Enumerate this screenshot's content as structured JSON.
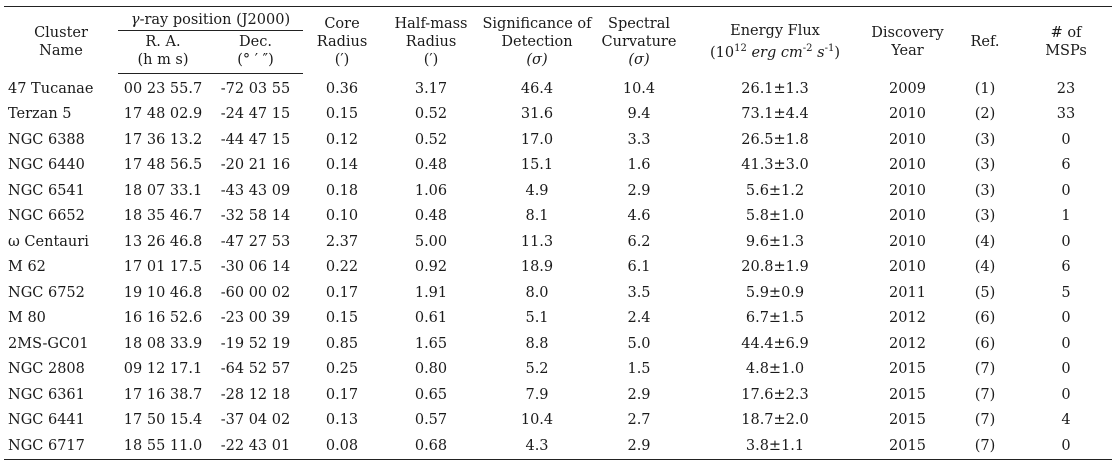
{
  "table": {
    "headers": {
      "cluster_name_1": "Cluster",
      "cluster_name_2": "Name",
      "gamma_group": "γ-ray position (J2000)",
      "ra_1": "R. A.",
      "ra_2": "(h m s)",
      "dec_1": "Dec.",
      "dec_2": "(° ′ ″)",
      "core_1": "Core",
      "core_2": "Radius",
      "core_3": "(′)",
      "half_1": "Half-mass",
      "half_2": "Radius",
      "half_3": "(′)",
      "sig_1": "Significance of",
      "sig_2": "Detection",
      "sig_3": "(σ)",
      "spec_1": "Spectral",
      "spec_2": "Curvature",
      "spec_3": "(σ)",
      "flux_1": "Energy Flux",
      "flux_2a": "(10",
      "flux_exp1": "12",
      "flux_2b": " erg cm",
      "flux_exp2": "-2",
      "flux_2c": " s",
      "flux_exp3": "-1",
      "flux_2d": ")",
      "year_1": "Discovery",
      "year_2": "Year",
      "ref": "Ref.",
      "msp_1": "# of",
      "msp_2": "MSPs"
    },
    "rows": [
      {
        "name": "47 Tucanae",
        "ra": "00 23 55.7",
        "dec": "-72 03 55",
        "core": "0.36",
        "half": "3.17",
        "sig": "46.4",
        "curv": "10.4",
        "flux": "26.1±1.3",
        "year": "2009",
        "ref": "(1)",
        "msps": "23"
      },
      {
        "name": "Terzan 5",
        "ra": "17 48 02.9",
        "dec": "-24 47 15",
        "core": "0.15",
        "half": "0.52",
        "sig": "31.6",
        "curv": "9.4",
        "flux": "73.1±4.4",
        "year": "2010",
        "ref": "(2)",
        "msps": "33"
      },
      {
        "name": "NGC 6388",
        "ra": "17 36 13.2",
        "dec": "-44 47 15",
        "core": "0.12",
        "half": "0.52",
        "sig": "17.0",
        "curv": "3.3",
        "flux": "26.5±1.8",
        "year": "2010",
        "ref": "(3)",
        "msps": "0"
      },
      {
        "name": "NGC 6440",
        "ra": "17 48 56.5",
        "dec": "-20 21 16",
        "core": "0.14",
        "half": "0.48",
        "sig": "15.1",
        "curv": "1.6",
        "flux": "41.3±3.0",
        "year": "2010",
        "ref": "(3)",
        "msps": "6"
      },
      {
        "name": "NGC 6541",
        "ra": "18 07 33.1",
        "dec": "-43 43 09",
        "core": "0.18",
        "half": "1.06",
        "sig": "4.9",
        "curv": "2.9",
        "flux": "5.6±1.2",
        "year": "2010",
        "ref": "(3)",
        "msps": "0"
      },
      {
        "name": "NGC 6652",
        "ra": "18 35 46.7",
        "dec": "-32 58 14",
        "core": "0.10",
        "half": "0.48",
        "sig": "8.1",
        "curv": "4.6",
        "flux": "5.8±1.0",
        "year": "2010",
        "ref": "(3)",
        "msps": "1"
      },
      {
        "name": "ω Centauri",
        "ra": "13 26 46.8",
        "dec": "-47 27 53",
        "core": "2.37",
        "half": "5.00",
        "sig": "11.3",
        "curv": "6.2",
        "flux": "9.6±1.3",
        "year": "2010",
        "ref": "(4)",
        "msps": "0"
      },
      {
        "name": "M 62",
        "ra": "17 01 17.5",
        "dec": "-30 06 14",
        "core": "0.22",
        "half": "0.92",
        "sig": "18.9",
        "curv": "6.1",
        "flux": "20.8±1.9",
        "year": "2010",
        "ref": "(4)",
        "msps": "6"
      },
      {
        "name": "NGC 6752",
        "ra": "19 10 46.8",
        "dec": "-60 00 02",
        "core": "0.17",
        "half": "1.91",
        "sig": "8.0",
        "curv": "3.5",
        "flux": "5.9±0.9",
        "year": "2011",
        "ref": "(5)",
        "msps": "5"
      },
      {
        "name": "M 80",
        "ra": "16 16 52.6",
        "dec": "-23 00 39",
        "core": "0.15",
        "half": "0.61",
        "sig": "5.1",
        "curv": "2.4",
        "flux": "6.7±1.5",
        "year": "2012",
        "ref": "(6)",
        "msps": "0"
      },
      {
        "name": "2MS-GC01",
        "ra": "18 08 33.9",
        "dec": "-19 52 19",
        "core": "0.85",
        "half": "1.65",
        "sig": "8.8",
        "curv": "5.0",
        "flux": "44.4±6.9",
        "year": "2012",
        "ref": "(6)",
        "msps": "0"
      },
      {
        "name": "NGC 2808",
        "ra": "09 12 17.1",
        "dec": "-64 52 57",
        "core": "0.25",
        "half": "0.80",
        "sig": "5.2",
        "curv": "1.5",
        "flux": "4.8±1.0",
        "year": "2015",
        "ref": "(7)",
        "msps": "0"
      },
      {
        "name": "NGC 6361",
        "ra": "17 16 38.7",
        "dec": "-28 12 18",
        "core": "0.17",
        "half": "0.65",
        "sig": "7.9",
        "curv": "2.9",
        "flux": "17.6±2.3",
        "year": "2015",
        "ref": "(7)",
        "msps": "0"
      },
      {
        "name": "NGC 6441",
        "ra": "17 50 15.4",
        "dec": "-37 04 02",
        "core": "0.13",
        "half": "0.57",
        "sig": "10.4",
        "curv": "2.7",
        "flux": "18.7±2.0",
        "year": "2015",
        "ref": "(7)",
        "msps": "4"
      },
      {
        "name": "NGC 6717",
        "ra": "18 55 11.0",
        "dec": "-22 43 01",
        "core": "0.08",
        "half": "0.68",
        "sig": "4.3",
        "curv": "2.9",
        "flux": "3.8±1.1",
        "year": "2015",
        "ref": "(7)",
        "msps": "0"
      }
    ]
  }
}
